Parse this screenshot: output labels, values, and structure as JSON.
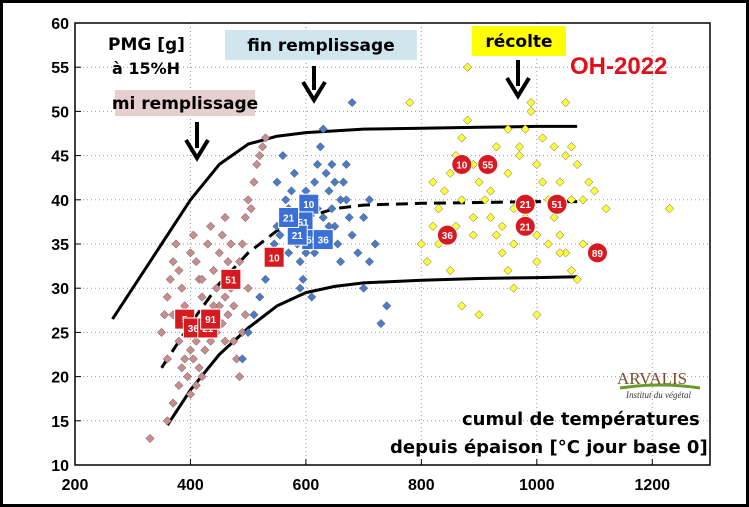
{
  "chart_data": {
    "type": "scatter",
    "title": "OH-2022",
    "ylabel": "PMG [g]\nà 15%H",
    "xlabel": "cumul de températures\ndepuis épaison [°C jour base 0]",
    "xlim": [
      200,
      1300
    ],
    "ylim": [
      10,
      60
    ],
    "x_ticks": [
      200,
      400,
      600,
      800,
      1000,
      1200
    ],
    "y_ticks": [
      10,
      15,
      20,
      25,
      30,
      35,
      40,
      45,
      50,
      55,
      60
    ],
    "grid": true,
    "stages": [
      {
        "label": "mi remplissage",
        "x": 410,
        "bg": "#e6cfcf",
        "text_color": "#000000"
      },
      {
        "label": "fin remplissage",
        "x": 620,
        "bg": "#cfe6ef",
        "text_color": "#000000"
      },
      {
        "label": "récolte",
        "x": 970,
        "bg": "#ffff00",
        "text_color": "#000000"
      }
    ],
    "series": [
      {
        "color": "#c98d8d",
        "marker": "diamond",
        "points": [
          [
            330,
            13
          ],
          [
            360,
            15
          ],
          [
            370,
            17
          ],
          [
            380,
            19
          ],
          [
            385,
            21
          ],
          [
            390,
            22
          ],
          [
            395,
            20
          ],
          [
            400,
            23
          ],
          [
            405,
            22
          ],
          [
            410,
            24
          ],
          [
            415,
            21
          ],
          [
            420,
            25
          ],
          [
            425,
            23
          ],
          [
            430,
            26
          ],
          [
            435,
            24
          ],
          [
            440,
            27
          ],
          [
            445,
            25
          ],
          [
            450,
            28
          ],
          [
            455,
            26
          ],
          [
            460,
            29
          ],
          [
            465,
            27
          ],
          [
            470,
            30
          ],
          [
            475,
            28
          ],
          [
            480,
            31
          ],
          [
            485,
            33
          ],
          [
            490,
            35
          ],
          [
            495,
            38
          ],
          [
            500,
            40
          ],
          [
            505,
            39
          ],
          [
            510,
            42
          ],
          [
            515,
            44
          ],
          [
            520,
            45
          ],
          [
            525,
            46
          ],
          [
            530,
            47
          ],
          [
            350,
            25
          ],
          [
            355,
            27
          ],
          [
            360,
            29
          ],
          [
            365,
            31
          ],
          [
            370,
            33
          ],
          [
            375,
            35
          ],
          [
            380,
            32
          ],
          [
            385,
            30
          ],
          [
            390,
            28
          ],
          [
            395,
            26
          ],
          [
            400,
            34
          ],
          [
            405,
            36
          ],
          [
            410,
            33
          ],
          [
            415,
            31
          ],
          [
            420,
            29
          ],
          [
            425,
            27
          ],
          [
            430,
            35
          ],
          [
            435,
            37
          ],
          [
            440,
            32
          ],
          [
            445,
            30
          ],
          [
            450,
            34
          ],
          [
            455,
            36
          ],
          [
            460,
            38
          ],
          [
            465,
            33
          ],
          [
            470,
            35
          ],
          [
            475,
            24
          ],
          [
            480,
            22
          ],
          [
            485,
            20
          ],
          [
            490,
            25
          ],
          [
            495,
            27
          ],
          [
            500,
            30
          ],
          [
            400,
            18
          ],
          [
            410,
            19
          ],
          [
            420,
            20
          ],
          [
            380,
            24
          ],
          [
            390,
            26
          ],
          [
            420,
            31
          ],
          [
            440,
            28
          ],
          [
            460,
            24
          ],
          [
            370,
            27
          ],
          [
            360,
            22
          ]
        ]
      },
      {
        "color": "#4a7bc8",
        "marker": "diamond",
        "points": [
          [
            490,
            22
          ],
          [
            500,
            25
          ],
          [
            510,
            27
          ],
          [
            520,
            29
          ],
          [
            530,
            31
          ],
          [
            540,
            33
          ],
          [
            545,
            35
          ],
          [
            550,
            37
          ],
          [
            555,
            36
          ],
          [
            560,
            38
          ],
          [
            565,
            40
          ],
          [
            570,
            39
          ],
          [
            575,
            41
          ],
          [
            580,
            37
          ],
          [
            585,
            35
          ],
          [
            590,
            33
          ],
          [
            595,
            31
          ],
          [
            600,
            36
          ],
          [
            605,
            38
          ],
          [
            610,
            40
          ],
          [
            615,
            42
          ],
          [
            620,
            44
          ],
          [
            625,
            46
          ],
          [
            630,
            48
          ],
          [
            635,
            43
          ],
          [
            640,
            41
          ],
          [
            645,
            39
          ],
          [
            650,
            37
          ],
          [
            655,
            35
          ],
          [
            660,
            40
          ],
          [
            665,
            42
          ],
          [
            670,
            44
          ],
          [
            675,
            38
          ],
          [
            680,
            36
          ],
          [
            690,
            34
          ],
          [
            700,
            30
          ],
          [
            710,
            33
          ],
          [
            720,
            35
          ],
          [
            730,
            26
          ],
          [
            740,
            28
          ],
          [
            680,
            51
          ],
          [
            560,
            45
          ],
          [
            580,
            43
          ],
          [
            600,
            41
          ],
          [
            620,
            39
          ],
          [
            640,
            37
          ],
          [
            660,
            33
          ],
          [
            700,
            38
          ],
          [
            710,
            40
          ],
          [
            590,
            30
          ],
          [
            610,
            29
          ],
          [
            570,
            34
          ],
          [
            550,
            42
          ],
          [
            600,
            34
          ],
          [
            620,
            36
          ],
          [
            650,
            42
          ],
          [
            630,
            38
          ],
          [
            615,
            34
          ],
          [
            645,
            44
          ],
          [
            670,
            40
          ]
        ]
      },
      {
        "color": "#ffff33",
        "marker": "diamond",
        "points": [
          [
            780,
            51
          ],
          [
            800,
            35
          ],
          [
            810,
            33
          ],
          [
            820,
            37
          ],
          [
            830,
            39
          ],
          [
            840,
            41
          ],
          [
            850,
            43
          ],
          [
            860,
            45
          ],
          [
            870,
            47
          ],
          [
            880,
            49
          ],
          [
            890,
            44
          ],
          [
            900,
            42
          ],
          [
            910,
            40
          ],
          [
            920,
            38
          ],
          [
            930,
            36
          ],
          [
            940,
            34
          ],
          [
            950,
            32
          ],
          [
            960,
            30
          ],
          [
            970,
            46
          ],
          [
            980,
            48
          ],
          [
            990,
            50
          ],
          [
            1000,
            44
          ],
          [
            1010,
            42
          ],
          [
            1020,
            40
          ],
          [
            1030,
            38
          ],
          [
            1040,
            36
          ],
          [
            1050,
            34
          ],
          [
            1060,
            32
          ],
          [
            1070,
            44
          ],
          [
            1080,
            40
          ],
          [
            1090,
            42
          ],
          [
            1100,
            41
          ],
          [
            1120,
            39
          ],
          [
            1230,
            39
          ],
          [
            880,
            55
          ],
          [
            990,
            51
          ],
          [
            1050,
            51
          ],
          [
            850,
            32
          ],
          [
            870,
            28
          ],
          [
            900,
            27
          ],
          [
            1000,
            27
          ],
          [
            830,
            35
          ],
          [
            860,
            37
          ],
          [
            890,
            38
          ],
          [
            920,
            41
          ],
          [
            950,
            43
          ],
          [
            970,
            45
          ],
          [
            1010,
            47
          ],
          [
            1030,
            46
          ],
          [
            1060,
            40
          ],
          [
            940,
            37
          ],
          [
            960,
            39
          ],
          [
            980,
            38
          ],
          [
            1000,
            36
          ],
          [
            1020,
            35
          ],
          [
            1040,
            34
          ],
          [
            1070,
            31
          ],
          [
            910,
            44
          ],
          [
            930,
            46
          ],
          [
            950,
            48
          ],
          [
            1040,
            42
          ],
          [
            1080,
            35
          ],
          [
            870,
            40
          ],
          [
            890,
            36
          ],
          [
            840,
            36
          ],
          [
            820,
            42
          ],
          [
            1000,
            33
          ],
          [
            1050,
            45
          ],
          [
            1060,
            46
          ],
          [
            960,
            35
          ]
        ]
      }
    ],
    "markers": [
      {
        "label": "10",
        "shape": "square",
        "color": "#d71920",
        "x": 545,
        "y": 33.5
      },
      {
        "label": "51",
        "shape": "square",
        "color": "#d71920",
        "x": 470,
        "y": 31
      },
      {
        "label": "5",
        "shape": "square",
        "color": "#d71920",
        "x": 390,
        "y": 26.5
      },
      {
        "label": "36",
        "shape": "square",
        "color": "#d71920",
        "x": 405,
        "y": 25.5
      },
      {
        "label": "21",
        "shape": "square",
        "color": "#d71920",
        "x": 430,
        "y": 25.5
      },
      {
        "label": "91",
        "shape": "square",
        "color": "#d71920",
        "x": 435,
        "y": 26.5
      },
      {
        "label": "10",
        "shape": "square",
        "color": "#3a6fd8",
        "x": 605,
        "y": 39.5
      },
      {
        "label": "51",
        "shape": "square",
        "color": "#3a6fd8",
        "x": 595,
        "y": 37.5
      },
      {
        "label": "55",
        "shape": "square",
        "color": "#3a6fd8",
        "x": 610,
        "y": 35.5
      },
      {
        "label": "36",
        "shape": "square",
        "color": "#3a6fd8",
        "x": 630,
        "y": 35.5
      },
      {
        "label": "21",
        "shape": "square",
        "color": "#3a6fd8",
        "x": 585,
        "y": 36
      },
      {
        "label": "21",
        "shape": "square",
        "color": "#3a6fd8",
        "x": 570,
        "y": 38
      },
      {
        "label": "10",
        "shape": "circle",
        "color": "#d71920",
        "x": 870,
        "y": 44
      },
      {
        "label": "55",
        "shape": "circle",
        "color": "#d71920",
        "x": 915,
        "y": 44
      },
      {
        "label": "21",
        "shape": "circle",
        "color": "#d71920",
        "x": 980,
        "y": 39.5
      },
      {
        "label": "21",
        "shape": "circle",
        "color": "#d71920",
        "x": 980,
        "y": 37
      },
      {
        "label": "51",
        "shape": "circle",
        "color": "#d71920",
        "x": 1035,
        "y": 39.5
      },
      {
        "label": "36",
        "shape": "circle",
        "color": "#d71920",
        "x": 845,
        "y": 36
      },
      {
        "label": "89",
        "shape": "circle",
        "color": "#d71920",
        "x": 1105,
        "y": 34
      }
    ],
    "curves": [
      {
        "style": "solid",
        "points": [
          [
            265,
            26.5
          ],
          [
            300,
            30
          ],
          [
            350,
            35
          ],
          [
            400,
            40
          ],
          [
            450,
            44
          ],
          [
            500,
            46.3
          ],
          [
            550,
            47.2
          ],
          [
            600,
            47.6
          ],
          [
            700,
            48
          ],
          [
            800,
            48.1
          ],
          [
            900,
            48.2
          ],
          [
            1000,
            48.3
          ],
          [
            1070,
            48.3
          ]
        ]
      },
      {
        "style": "dashed",
        "points": [
          [
            350,
            21
          ],
          [
            400,
            26
          ],
          [
            450,
            30.5
          ],
          [
            500,
            34
          ],
          [
            550,
            36.5
          ],
          [
            600,
            38
          ],
          [
            650,
            39
          ],
          [
            700,
            39.4
          ],
          [
            800,
            39.6
          ],
          [
            900,
            39.7
          ],
          [
            1000,
            39.8
          ],
          [
            1070,
            39.8
          ]
        ]
      },
      {
        "style": "solid",
        "points": [
          [
            360,
            14.5
          ],
          [
            400,
            18.5
          ],
          [
            450,
            22.5
          ],
          [
            500,
            25.5
          ],
          [
            550,
            28
          ],
          [
            600,
            29.5
          ],
          [
            650,
            30.2
          ],
          [
            700,
            30.6
          ],
          [
            800,
            30.9
          ],
          [
            900,
            31.1
          ],
          [
            1000,
            31.2
          ],
          [
            1070,
            31.3
          ]
        ]
      }
    ]
  },
  "logo": {
    "name": "ARVALIS",
    "subtitle": "Institut du végétal"
  }
}
